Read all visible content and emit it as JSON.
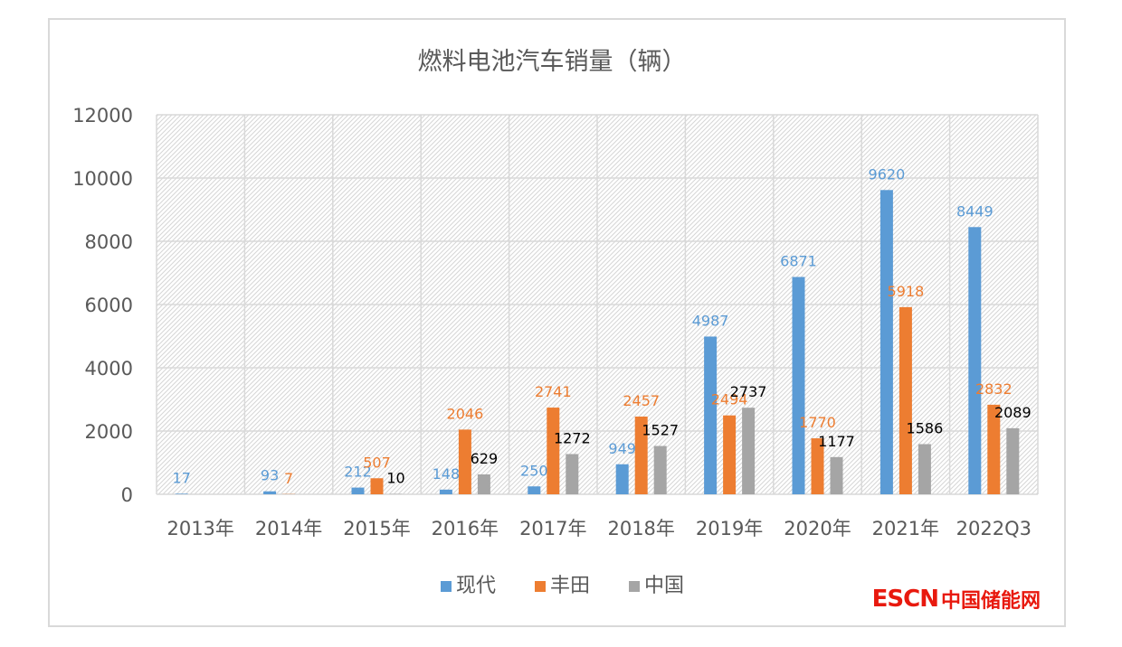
{
  "chart_data": {
    "type": "bar",
    "title": "燃料电池汽车销量（辆）",
    "categories": [
      "2013年",
      "2014年",
      "2015年",
      "2016年",
      "2017年",
      "2018年",
      "2019年",
      "2020年",
      "2021年",
      "2022Q3"
    ],
    "series": [
      {
        "name": "现代",
        "color": "#5b9bd5",
        "label_color": "#5b9bd5",
        "values": [
          17,
          93,
          212,
          148,
          250,
          949,
          4987,
          6871,
          9620,
          8449
        ]
      },
      {
        "name": "丰田",
        "color": "#ed7d31",
        "label_color": "#ed7d31",
        "values": [
          null,
          7,
          507,
          2046,
          2741,
          2457,
          2494,
          1770,
          5918,
          2832
        ]
      },
      {
        "name": "中国",
        "color": "#a5a5a5",
        "label_color": "#000000",
        "values": [
          null,
          null,
          10,
          629,
          1272,
          1527,
          2737,
          1177,
          1586,
          2089
        ]
      }
    ],
    "y_ticks": [
      "0",
      "2000",
      "4000",
      "6000",
      "8000",
      "10000",
      "12000"
    ],
    "ylim": [
      0,
      12000
    ],
    "grid": true,
    "legend_position": "bottom"
  },
  "watermark": {
    "latin": "ESCN",
    "cjk": "中国储能网"
  }
}
